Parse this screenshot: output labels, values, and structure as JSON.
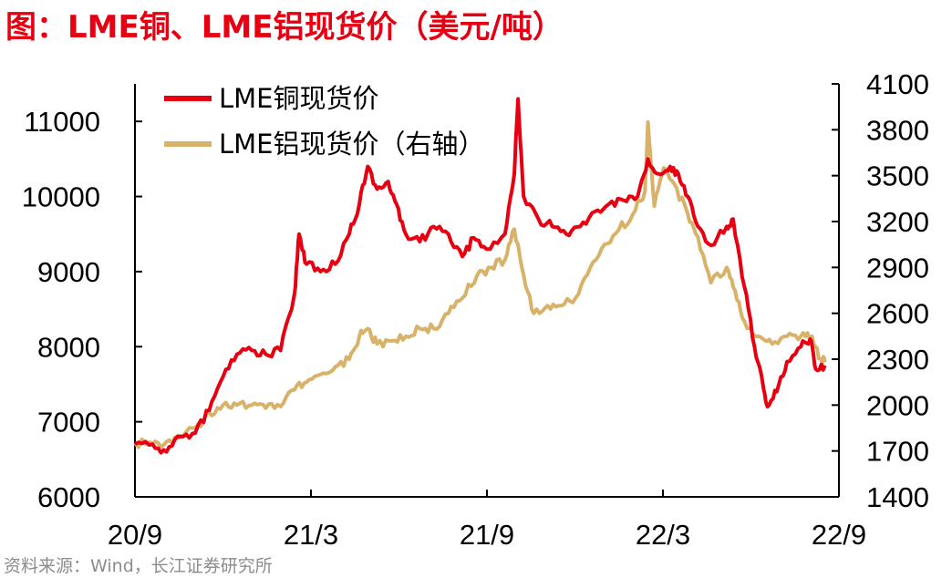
{
  "title": "图：LME铜、LME铝现货价（美元/吨）",
  "source": "资料来源：Wind，长江证券研究所",
  "chart_data": {
    "type": "line",
    "title": "图：LME铜、LME铝现货价（美元/吨）",
    "x_ticks": [
      "20/9",
      "21/3",
      "21/9",
      "22/3",
      "22/9"
    ],
    "x_range": [
      "2020-09",
      "2022-09"
    ],
    "left_axis": {
      "ylim": [
        6000,
        11500
      ],
      "ticks": [
        6000,
        7000,
        8000,
        9000,
        10000,
        11000
      ]
    },
    "right_axis": {
      "ylim": [
        1400,
        4100
      ],
      "ticks": [
        1400,
        1700,
        2000,
        2300,
        2600,
        2900,
        3200,
        3500,
        3800,
        4100
      ]
    },
    "legend_placement": "top-left",
    "series": [
      {
        "name": "LME铜现货价",
        "axis": "left",
        "color": "#e60012",
        "points": [
          [
            "2020-09-01",
            6700
          ],
          [
            "2020-09-20",
            6700
          ],
          [
            "2020-10-05",
            6600
          ],
          [
            "2020-10-20",
            6800
          ],
          [
            "2020-11-05",
            6850
          ],
          [
            "2020-11-20",
            7150
          ],
          [
            "2020-12-05",
            7600
          ],
          [
            "2020-12-20",
            7900
          ],
          [
            "2021-01-05",
            7950
          ],
          [
            "2021-01-20",
            7900
          ],
          [
            "2021-02-05",
            7950
          ],
          [
            "2021-02-20",
            8700
          ],
          [
            "2021-02-25",
            9500
          ],
          [
            "2021-03-05",
            9100
          ],
          [
            "2021-03-20",
            9000
          ],
          [
            "2021-04-05",
            9100
          ],
          [
            "2021-04-20",
            9500
          ],
          [
            "2021-05-01",
            9900
          ],
          [
            "2021-05-10",
            10400
          ],
          [
            "2021-05-20",
            10100
          ],
          [
            "2021-06-01",
            10200
          ],
          [
            "2021-06-10",
            9900
          ],
          [
            "2021-06-20",
            9500
          ],
          [
            "2021-07-05",
            9400
          ],
          [
            "2021-07-20",
            9600
          ],
          [
            "2021-08-05",
            9500
          ],
          [
            "2021-08-20",
            9200
          ],
          [
            "2021-09-01",
            9450
          ],
          [
            "2021-09-15",
            9300
          ],
          [
            "2021-10-05",
            9500
          ],
          [
            "2021-10-15",
            10300
          ],
          [
            "2021-10-19",
            11300
          ],
          [
            "2021-10-25",
            10000
          ],
          [
            "2021-11-10",
            9700
          ],
          [
            "2021-11-25",
            9600
          ],
          [
            "2021-12-10",
            9500
          ],
          [
            "2021-12-25",
            9600
          ],
          [
            "2022-01-10",
            9800
          ],
          [
            "2022-01-25",
            9900
          ],
          [
            "2022-02-10",
            9950
          ],
          [
            "2022-02-25",
            10000
          ],
          [
            "2022-03-08",
            10500
          ],
          [
            "2022-03-20",
            10300
          ],
          [
            "2022-04-01",
            10400
          ],
          [
            "2022-04-10",
            10300
          ],
          [
            "2022-04-20",
            10000
          ],
          [
            "2022-05-01",
            9600
          ],
          [
            "2022-05-15",
            9350
          ],
          [
            "2022-06-01",
            9600
          ],
          [
            "2022-06-08",
            9700
          ],
          [
            "2022-06-20",
            8800
          ],
          [
            "2022-07-01",
            8000
          ],
          [
            "2022-07-10",
            7500
          ],
          [
            "2022-07-15",
            7200
          ],
          [
            "2022-07-25",
            7400
          ],
          [
            "2022-08-05",
            7800
          ],
          [
            "2022-08-20",
            8000
          ],
          [
            "2022-08-30",
            8100
          ],
          [
            "2022-09-05",
            7700
          ],
          [
            "2022-09-15",
            7750
          ]
        ]
      },
      {
        "name": "LME铝现货价（右轴）",
        "axis": "right",
        "color": "#d9b26a",
        "points": [
          [
            "2020-09-01",
            1750
          ],
          [
            "2020-09-20",
            1750
          ],
          [
            "2020-10-05",
            1760
          ],
          [
            "2020-10-20",
            1800
          ],
          [
            "2020-11-05",
            1850
          ],
          [
            "2020-11-20",
            1950
          ],
          [
            "2020-12-05",
            2000
          ],
          [
            "2020-12-20",
            2000
          ],
          [
            "2021-01-05",
            2000
          ],
          [
            "2021-01-20",
            1980
          ],
          [
            "2021-02-05",
            1990
          ],
          [
            "2021-02-20",
            2100
          ],
          [
            "2021-03-05",
            2150
          ],
          [
            "2021-03-20",
            2200
          ],
          [
            "2021-04-05",
            2250
          ],
          [
            "2021-04-20",
            2300
          ],
          [
            "2021-05-01",
            2450
          ],
          [
            "2021-05-10",
            2500
          ],
          [
            "2021-05-20",
            2400
          ],
          [
            "2021-06-05",
            2420
          ],
          [
            "2021-06-20",
            2450
          ],
          [
            "2021-07-05",
            2500
          ],
          [
            "2021-07-20",
            2500
          ],
          [
            "2021-08-05",
            2600
          ],
          [
            "2021-08-20",
            2700
          ],
          [
            "2021-09-05",
            2850
          ],
          [
            "2021-09-20",
            2900
          ],
          [
            "2021-10-05",
            2950
          ],
          [
            "2021-10-15",
            3150
          ],
          [
            "2021-10-25",
            2850
          ],
          [
            "2021-11-05",
            2600
          ],
          [
            "2021-11-20",
            2650
          ],
          [
            "2021-12-05",
            2650
          ],
          [
            "2021-12-20",
            2700
          ],
          [
            "2022-01-05",
            2900
          ],
          [
            "2022-01-20",
            3050
          ],
          [
            "2022-02-05",
            3150
          ],
          [
            "2022-02-20",
            3250
          ],
          [
            "2022-03-05",
            3400
          ],
          [
            "2022-03-08",
            3850
          ],
          [
            "2022-03-15",
            3300
          ],
          [
            "2022-03-25",
            3550
          ],
          [
            "2022-04-05",
            3450
          ],
          [
            "2022-04-20",
            3250
          ],
          [
            "2022-05-01",
            3100
          ],
          [
            "2022-05-15",
            2800
          ],
          [
            "2022-06-01",
            2900
          ],
          [
            "2022-06-10",
            2750
          ],
          [
            "2022-06-20",
            2550
          ],
          [
            "2022-07-05",
            2450
          ],
          [
            "2022-07-20",
            2400
          ],
          [
            "2022-08-05",
            2450
          ],
          [
            "2022-08-20",
            2450
          ],
          [
            "2022-09-01",
            2450
          ],
          [
            "2022-09-10",
            2300
          ],
          [
            "2022-09-15",
            2280
          ]
        ]
      }
    ]
  }
}
